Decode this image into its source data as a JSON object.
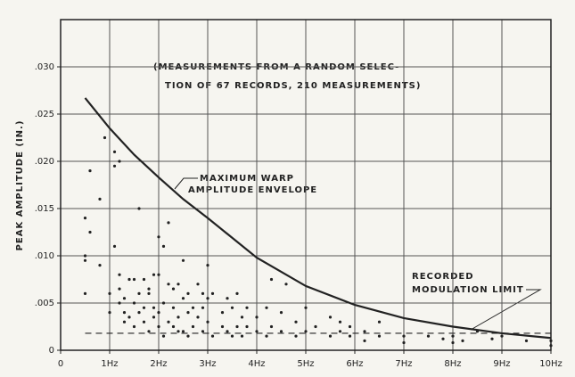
{
  "chart_data": {
    "type": "scatter",
    "y_label": "PEAK AMPLITUDE (IN.)",
    "annotations": [
      {
        "lines": [
          "(MEASUREMENTS FROM A RANDOM SELEC-",
          "TION OF 67 RECORDS, 210 MEASUREMENTS)"
        ]
      },
      {
        "lines": [
          "MAXIMUM WARP",
          "AMPLITUDE ENVELOPE"
        ]
      },
      {
        "lines": [
          "RECORDED",
          "MODULATION LIMIT"
        ]
      }
    ],
    "xlim": [
      0,
      10
    ],
    "ylim": [
      0,
      0.035
    ],
    "xticks": [
      0,
      {
        "value": 1,
        "label": "1Hz"
      },
      {
        "value": 2,
        "label": "2Hz"
      },
      {
        "value": 3,
        "label": "3Hz"
      },
      {
        "value": 4,
        "label": "4Hz"
      },
      {
        "value": 5,
        "label": "5Hz"
      },
      {
        "value": 6,
        "label": "6Hz"
      },
      {
        "value": 7,
        "label": "7Hz"
      },
      {
        "value": 8,
        "label": "8Hz"
      },
      {
        "value": 9,
        "label": "9Hz"
      },
      {
        "value": 10,
        "label": "10Hz"
      }
    ],
    "yticks": [
      0,
      {
        "value": 0.005,
        "label": ".005"
      },
      {
        "value": 0.01,
        "label": ".010"
      },
      {
        "value": 0.015,
        "label": ".015"
      },
      {
        "value": 0.02,
        "label": ".020"
      },
      {
        "value": 0.025,
        "label": ".025"
      },
      {
        "value": 0.03,
        "label": ".030"
      }
    ],
    "grid": true,
    "color": "#222222",
    "points": {
      "x": [
        0.5,
        0.5,
        0.5,
        0.5,
        0.6,
        0.6,
        0.8,
        0.8,
        0.9,
        1.0,
        1.0,
        1.1,
        1.1,
        1.1,
        1.2,
        1.2,
        1.2,
        1.2,
        1.3,
        1.3,
        1.3,
        1.4,
        1.4,
        1.5,
        1.5,
        1.5,
        1.6,
        1.6,
        1.6,
        1.7,
        1.7,
        1.7,
        1.8,
        1.8,
        1.8,
        1.9,
        1.9,
        1.9,
        2.0,
        2.0,
        2.0,
        2.0,
        2.1,
        2.1,
        2.1,
        2.2,
        2.2,
        2.2,
        2.3,
        2.3,
        2.3,
        2.4,
        2.4,
        2.4,
        2.5,
        2.5,
        2.5,
        2.6,
        2.6,
        2.6,
        2.7,
        2.7,
        2.8,
        2.8,
        2.9,
        2.9,
        2.9,
        3.0,
        3.0,
        3.0,
        3.1,
        3.1,
        3.3,
        3.3,
        3.4,
        3.4,
        3.5,
        3.5,
        3.6,
        3.6,
        3.7,
        3.7,
        3.8,
        3.8,
        4.0,
        4.0,
        4.2,
        4.2,
        4.3,
        4.3,
        4.5,
        4.5,
        4.6,
        4.8,
        4.8,
        5.0,
        5.0,
        5.2,
        5.5,
        5.5,
        5.7,
        5.7,
        5.9,
        5.9,
        6.2,
        6.2,
        6.5,
        6.5,
        7.0,
        7.0,
        7.5,
        7.8,
        8.0,
        8.0,
        8.2,
        8.5,
        8.8,
        9.0,
        9.5,
        10,
        10
      ],
      "y": [
        0.01,
        0.014,
        0.006,
        0.0095,
        0.019,
        0.0125,
        0.016,
        0.009,
        0.0225,
        0.006,
        0.004,
        0.021,
        0.011,
        0.0195,
        0.02,
        0.008,
        0.0065,
        0.005,
        0.0055,
        0.004,
        0.003,
        0.0075,
        0.0035,
        0.0075,
        0.0025,
        0.005,
        0.015,
        0.006,
        0.004,
        0.0075,
        0.003,
        0.0045,
        0.006,
        0.0065,
        0.002,
        0.0045,
        0.008,
        0.0035,
        0.012,
        0.008,
        0.004,
        0.0025,
        0.011,
        0.005,
        0.0015,
        0.0135,
        0.007,
        0.003,
        0.0045,
        0.0025,
        0.0065,
        0.007,
        0.0035,
        0.002,
        0.0055,
        0.0095,
        0.002,
        0.006,
        0.004,
        0.0015,
        0.0045,
        0.0025,
        0.007,
        0.0035,
        0.006,
        0.0045,
        0.002,
        0.009,
        0.0055,
        0.003,
        0.006,
        0.0015,
        0.004,
        0.0025,
        0.0055,
        0.002,
        0.0045,
        0.0015,
        0.006,
        0.0025,
        0.0035,
        0.0015,
        0.0025,
        0.0045,
        0.0035,
        0.002,
        0.0045,
        0.0015,
        0.0075,
        0.0025,
        0.004,
        0.002,
        0.007,
        0.003,
        0.0015,
        0.0045,
        0.002,
        0.0025,
        0.0035,
        0.0015,
        0.003,
        0.002,
        0.0025,
        0.0015,
        0.002,
        0.001,
        0.003,
        0.0015,
        0.0015,
        0.0008,
        0.0015,
        0.0012,
        0.0015,
        0.0008,
        0.001,
        0.002,
        0.0012,
        0.0015,
        0.001,
        0.0005,
        0.001
      ]
    },
    "envelope": {
      "x": [
        0.5,
        1,
        1.5,
        2,
        2.5,
        3,
        4,
        5,
        6,
        7,
        8,
        9,
        10
      ],
      "y": [
        0.0267,
        0.0235,
        0.0207,
        0.0183,
        0.016,
        0.014,
        0.0098,
        0.0068,
        0.0048,
        0.0034,
        0.0025,
        0.0018,
        0.0013
      ]
    },
    "limit": {
      "x": [
        0.5,
        10
      ],
      "y": [
        0.0018,
        0.0018
      ],
      "dashed": true
    }
  }
}
